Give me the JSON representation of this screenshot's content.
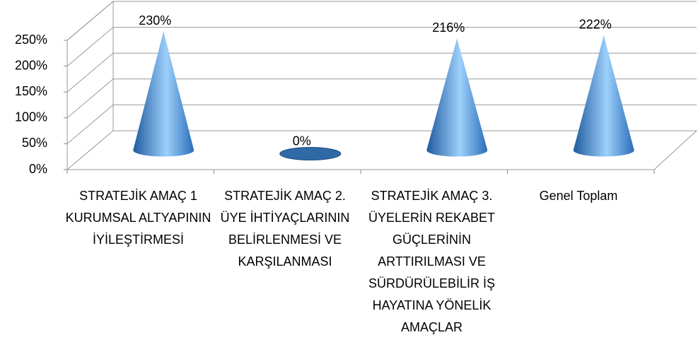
{
  "chart_data": {
    "type": "cone",
    "categories": [
      "STRATEJİK AMAÇ 1 KURUMSAL ALTYAPININ İYİLEŞTİRMESİ",
      "STRATEJİK AMAÇ 2. ÜYE İHTİYAÇLARININ BELİRLENMESİ VE KARŞILANMASI",
      "STRATEJİK AMAÇ 3. ÜYELERİN REKABET GÜÇLERİNİN ARTTIRILMASI VE SÜRDÜRÜLEBİLİR İŞ HAYATINA YÖNELİK AMAÇLAR",
      "Genel Toplam"
    ],
    "values": [
      230,
      0,
      216,
      222
    ],
    "value_labels": [
      "230%",
      "0%",
      "216%",
      "222%"
    ],
    "color": "#4a8fd6",
    "ylim": [
      0,
      250
    ],
    "yticks": [
      {
        "value": 0,
        "label": "0%"
      },
      {
        "value": 50,
        "label": "50%"
      },
      {
        "value": 100,
        "label": "100%"
      },
      {
        "value": 150,
        "label": "150%"
      },
      {
        "value": 200,
        "label": "200%"
      },
      {
        "value": 250,
        "label": "250%"
      }
    ],
    "grid": true
  }
}
